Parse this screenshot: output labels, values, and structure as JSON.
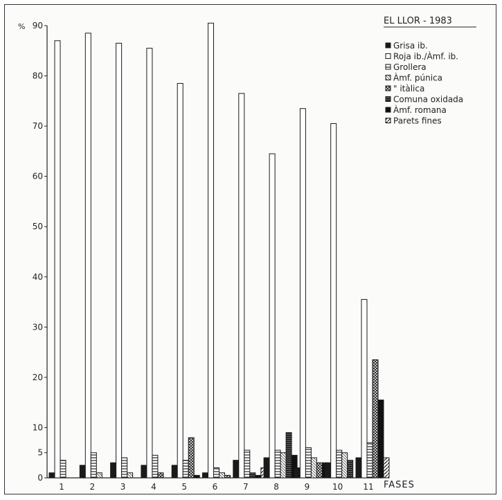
{
  "chart_data": {
    "type": "bar",
    "title": "EL LLOR - 1983",
    "y_unit_label": "%",
    "xlabel": "FASES",
    "ylim": [
      0,
      90
    ],
    "y_ticks": [
      0,
      5,
      10,
      20,
      30,
      40,
      50,
      60,
      70,
      80,
      90
    ],
    "grid": false,
    "legend_position": "top-right",
    "categories": [
      "1",
      "2",
      "3",
      "4",
      "5",
      "6",
      "7",
      "8",
      "9",
      "10",
      "11"
    ],
    "series": [
      {
        "name": "Grisa ib.",
        "pattern": "solid",
        "values": [
          1.0,
          2.5,
          3.0,
          2.5,
          2.5,
          1.0,
          3.5,
          4.0,
          2.0,
          3.0,
          4.0
        ]
      },
      {
        "name": "Roja ib./Àmf. ib.",
        "pattern": "open",
        "values": [
          87.0,
          88.5,
          86.5,
          85.5,
          78.5,
          90.5,
          76.5,
          64.5,
          73.5,
          70.5,
          35.5
        ]
      },
      {
        "name": "Grollera",
        "pattern": "hlines",
        "values": [
          3.5,
          5.0,
          4.0,
          4.5,
          3.5,
          2.0,
          5.5,
          5.5,
          6.0,
          5.5,
          7.0
        ]
      },
      {
        "name": "Àmf. púnica",
        "pattern": "hatch-light",
        "values": [
          0,
          1.0,
          1.0,
          0,
          0,
          1.0,
          0,
          5.0,
          4.0,
          5.0,
          0
        ]
      },
      {
        "name": "\" itàlica",
        "pattern": "crosshatch",
        "values": [
          0,
          0,
          0,
          1.0,
          8.0,
          0.5,
          0,
          0,
          3.0,
          0,
          23.5
        ]
      },
      {
        "name": "Comuna oxidada",
        "pattern": "dense",
        "values": [
          0,
          0,
          0,
          0,
          0,
          0,
          1.0,
          9.0,
          0,
          3.5,
          0
        ]
      },
      {
        "name": "Àmf. romana",
        "pattern": "solid-dark",
        "values": [
          0,
          0,
          0,
          0,
          0.5,
          0,
          0.5,
          4.5,
          3.0,
          0,
          15.5
        ]
      },
      {
        "name": "Parets fines",
        "pattern": "diag",
        "values": [
          0,
          0,
          0,
          0,
          0,
          0,
          2.0,
          0,
          0,
          0,
          4.0
        ]
      }
    ]
  }
}
